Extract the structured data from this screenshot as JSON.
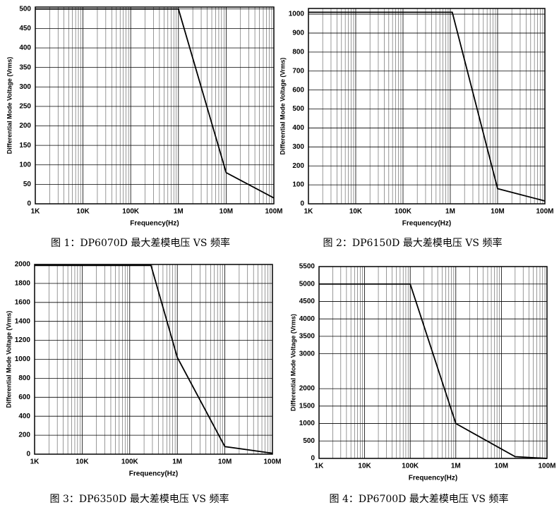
{
  "chart_data": [
    {
      "type": "line",
      "x_label": "Frequency(Hz)",
      "y_label": "Differential Mode Voltage (Vrms)",
      "caption": "图 1：DP6070D 最大差模电压 VS 频率",
      "x": [
        1000,
        1000000,
        10000000,
        100000000
      ],
      "values": [
        500,
        500,
        80,
        15
      ],
      "color": "#000000",
      "log_x": true,
      "grid": true,
      "xlim": [
        1000,
        100000000
      ],
      "xticks": [
        {
          "value": 1000,
          "label": "1K"
        },
        {
          "value": 10000,
          "label": "10K"
        },
        {
          "value": 100000,
          "label": "100K"
        },
        {
          "value": 1000000,
          "label": "1M"
        },
        {
          "value": 10000000,
          "label": "10M"
        },
        {
          "value": 100000000,
          "label": "100M"
        }
      ],
      "ylim": [
        0,
        505
      ],
      "yticks": [
        0,
        50,
        100,
        150,
        200,
        250,
        300,
        350,
        400,
        450,
        500
      ]
    },
    {
      "type": "line",
      "x_label": "Frequency(Hz)",
      "y_label": "Differential Mode Voltage (Vrms)",
      "caption": "图 2：DP6150D 最大差模电压 VS 频率",
      "x": [
        1000,
        1100000,
        10000000,
        100000000
      ],
      "values": [
        1010,
        1010,
        80,
        15
      ],
      "color": "#000000",
      "log_x": true,
      "grid": true,
      "xlim": [
        1000,
        100000000
      ],
      "xticks": [
        {
          "value": 1000,
          "label": "1K"
        },
        {
          "value": 10000,
          "label": "10K"
        },
        {
          "value": 100000,
          "label": "100K"
        },
        {
          "value": 1000000,
          "label": "1M"
        },
        {
          "value": 10000000,
          "label": "10M"
        },
        {
          "value": 100000000,
          "label": "100M"
        }
      ],
      "ylim": [
        0,
        1030
      ],
      "yticks": [
        0,
        100,
        200,
        300,
        400,
        500,
        600,
        700,
        800,
        900,
        1000
      ]
    },
    {
      "type": "line",
      "x_label": "Frequency(Hz)",
      "y_label": "Differential Mode Voltage (Vrms)",
      "caption": "图 3：DP6350D 最大差模电压 VS 频率",
      "x": [
        1000,
        280000,
        1000000,
        10000000,
        100000000
      ],
      "values": [
        1990,
        1990,
        1020,
        80,
        10
      ],
      "color": "#000000",
      "log_x": true,
      "grid": true,
      "xlim": [
        1000,
        100000000
      ],
      "xticks": [
        {
          "value": 1000,
          "label": "1K"
        },
        {
          "value": 10000,
          "label": "10K"
        },
        {
          "value": 100000,
          "label": "100K"
        },
        {
          "value": 1000000,
          "label": "1M"
        },
        {
          "value": 10000000,
          "label": "10M"
        },
        {
          "value": 100000000,
          "label": "100M"
        }
      ],
      "ylim": [
        0,
        2000
      ],
      "yticks": [
        0,
        200,
        400,
        600,
        800,
        1000,
        1200,
        1400,
        1600,
        1800,
        2000
      ]
    },
    {
      "type": "line",
      "x_label": "Frequency(Hz)",
      "y_label": "Differential Mode Voltage (Vrms)",
      "caption": "图 4：DP6700D 最大差模电压 VS 频率",
      "x": [
        1000,
        100000,
        1000000,
        20000000,
        100000000
      ],
      "values": [
        5000,
        5000,
        1000,
        50,
        0
      ],
      "color": "#000000",
      "log_x": true,
      "grid": true,
      "xlim": [
        1000,
        100000000
      ],
      "xticks": [
        {
          "value": 1000,
          "label": "1K"
        },
        {
          "value": 10000,
          "label": "10K"
        },
        {
          "value": 100000,
          "label": "100K"
        },
        {
          "value": 1000000,
          "label": "1M"
        },
        {
          "value": 10000000,
          "label": "10M"
        },
        {
          "value": 100000000,
          "label": "100M"
        }
      ],
      "ylim": [
        0,
        5500
      ],
      "yticks": [
        0,
        500,
        1000,
        1500,
        2000,
        3000,
        3500,
        4000,
        4500,
        5000,
        5500
      ]
    }
  ]
}
